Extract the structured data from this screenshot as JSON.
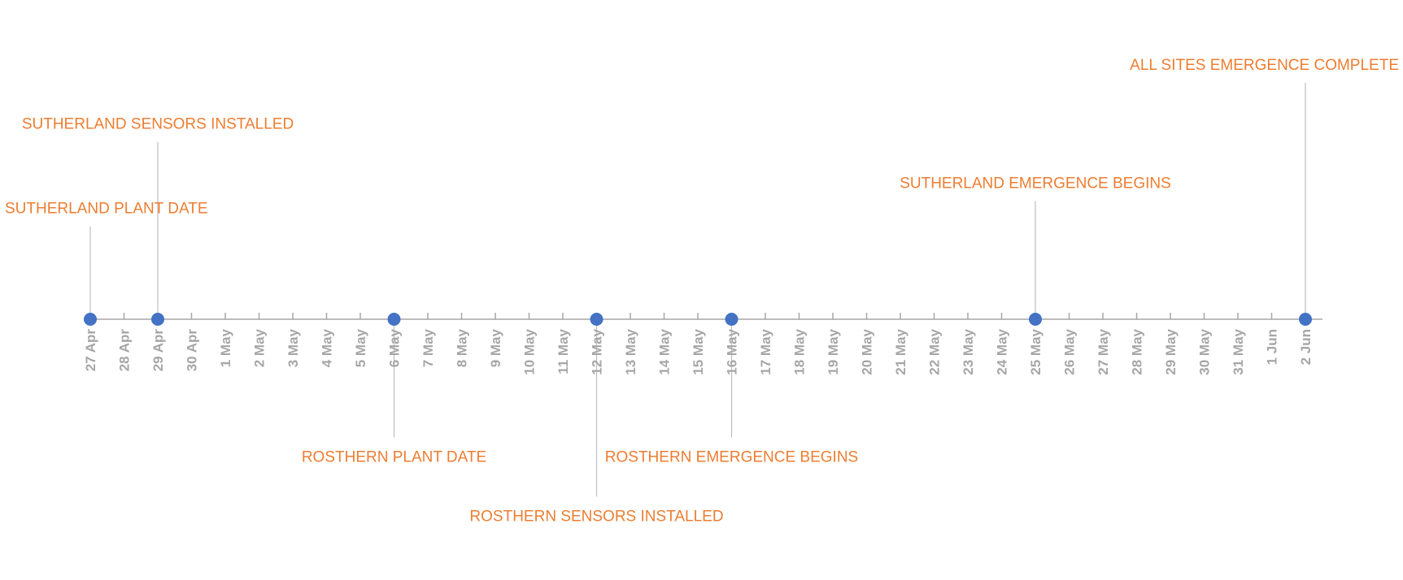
{
  "chart_data": {
    "type": "timeline",
    "title": "",
    "axis": {
      "start": "27 Apr",
      "end": "2 Jun",
      "ticks": [
        "27 Apr",
        "28 Apr",
        "29 Apr",
        "30 Apr",
        "1 May",
        "2 May",
        "3 May",
        "4 May",
        "5 May",
        "6 May",
        "7 May",
        "8 May",
        "9 May",
        "10 May",
        "11 May",
        "12 May",
        "13 May",
        "14 May",
        "15 May",
        "16 May",
        "17 May",
        "18 May",
        "19 May",
        "20 May",
        "21 May",
        "22 May",
        "23 May",
        "24 May",
        "25 May",
        "26 May",
        "27 May",
        "28 May",
        "29 May",
        "30 May",
        "31 May",
        "1 Jun",
        "2 Jun"
      ]
    },
    "events": [
      {
        "date": "27 Apr",
        "label": "SUTHERLAND PLANT DATE",
        "height": 11,
        "anchor": "start"
      },
      {
        "date": "29 Apr",
        "label": "SUTHERLAND SENSORS INSTALLED",
        "height": 21,
        "anchor": "middle"
      },
      {
        "date": "6 May",
        "label": "ROSTHERN PLANT DATE",
        "height": -14,
        "anchor": "middle"
      },
      {
        "date": "12 May",
        "label": "ROSTHERN SENSORS INSTALLED",
        "height": -21,
        "anchor": "middle"
      },
      {
        "date": "16 May",
        "label": "ROSTHERN EMERGENCE BEGINS",
        "height": -14,
        "anchor": "middle"
      },
      {
        "date": "25 May",
        "label": "SUTHERLAND EMERGENCE BEGINS",
        "height": 14,
        "anchor": "middle"
      },
      {
        "date": "2 Jun",
        "label": "ALL SITES EMERGENCE COMPLETE",
        "height": 28,
        "anchor": "end"
      }
    ],
    "colors": {
      "marker": "#4472c4",
      "label": "#ed7d31",
      "axis": "#a6a6a6",
      "leader": "#bfbfbf"
    }
  }
}
